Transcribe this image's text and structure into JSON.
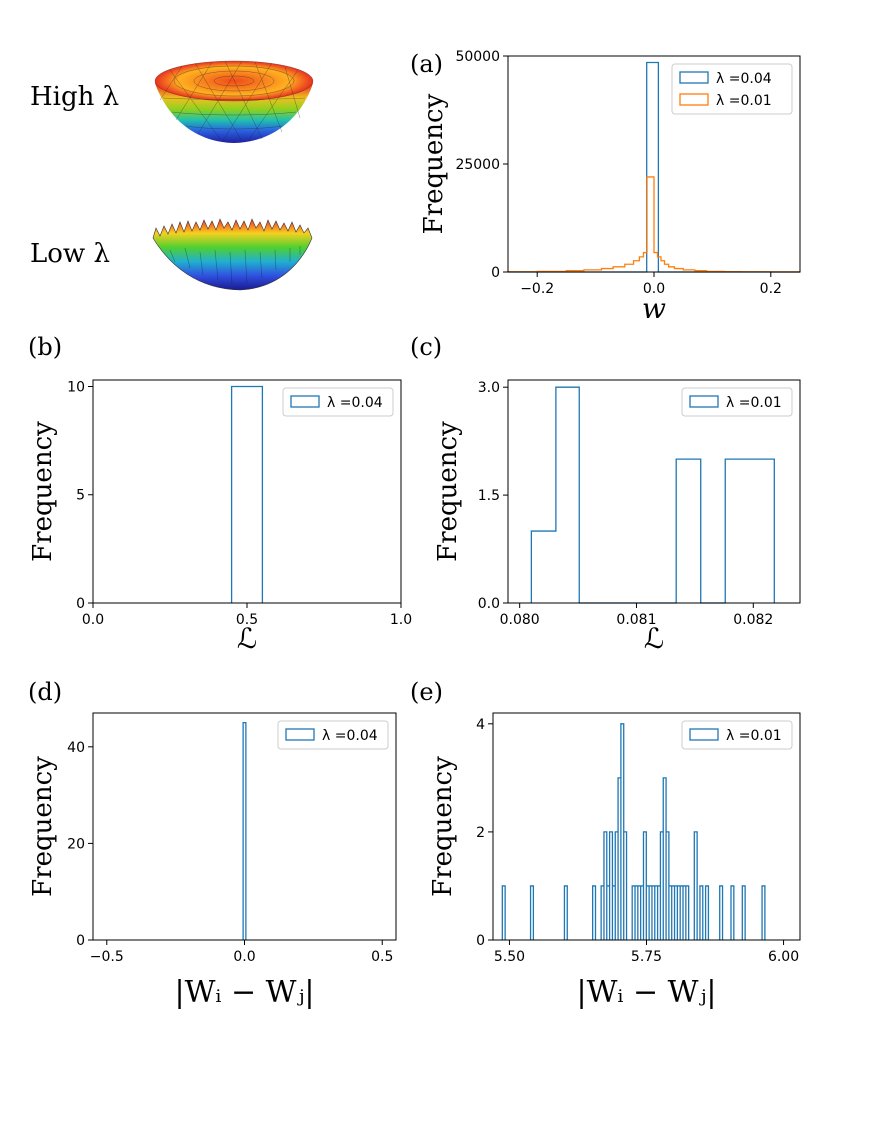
{
  "colors": {
    "blue": "#1f77b4",
    "orange": "#ff7f0e",
    "axis": "#000000",
    "background": "#ffffff"
  },
  "landscape": {
    "high_label": "High λ",
    "low_label": "Low λ"
  },
  "chart_data": [
    {
      "id": "a",
      "type": "histogram",
      "panel_label": "(a)",
      "xlabel": "w",
      "ylabel": "Frequency",
      "xlim": [
        -0.25,
        0.25
      ],
      "ylim": [
        0,
        50000
      ],
      "xticks": [
        -0.2,
        0.0,
        0.2
      ],
      "xtick_labels": [
        "−0.2",
        "0.0",
        "0.2"
      ],
      "yticks": [
        0,
        25000,
        50000
      ],
      "ytick_labels": [
        "0",
        "25000",
        "50000"
      ],
      "legend": "top-right",
      "series": [
        {
          "name": "λ =0.04",
          "color": "blue",
          "edges": [
            -0.25,
            -0.0125,
            -0.0025,
            0.0075,
            0.25
          ],
          "counts": [
            0,
            48500,
            48500,
            0
          ]
        },
        {
          "name": "λ =0.01",
          "color": "orange",
          "edges": [
            -0.25,
            -0.2,
            -0.15,
            -0.12,
            -0.09,
            -0.07,
            -0.05,
            -0.035,
            -0.025,
            -0.018,
            -0.012,
            -0.006,
            0.0,
            0.006,
            0.012,
            0.018,
            0.025,
            0.035,
            0.05,
            0.07,
            0.09,
            0.12,
            0.15,
            0.2,
            0.25
          ],
          "counts": [
            50,
            150,
            300,
            500,
            800,
            1200,
            1800,
            2600,
            3500,
            4500,
            22000,
            22000,
            4500,
            3500,
            2600,
            1800,
            1200,
            800,
            500,
            300,
            150,
            80,
            40,
            20
          ]
        }
      ]
    },
    {
      "id": "b",
      "type": "histogram",
      "panel_label": "(b)",
      "xlabel": "ℒ",
      "ylabel": "Frequency",
      "xlim": [
        0.0,
        1.0
      ],
      "ylim": [
        0,
        10.3
      ],
      "xticks": [
        0.0,
        0.5,
        1.0
      ],
      "xtick_labels": [
        "0.0",
        "0.5",
        "1.0"
      ],
      "yticks": [
        0,
        5,
        10
      ],
      "ytick_labels": [
        "0",
        "5",
        "10"
      ],
      "legend": "top-right",
      "series": [
        {
          "name": "λ =0.04",
          "color": "blue",
          "edges": [
            0.45,
            0.55
          ],
          "counts": [
            10
          ]
        }
      ]
    },
    {
      "id": "c",
      "type": "histogram",
      "panel_label": "(c)",
      "xlabel": "ℒ",
      "ylabel": "Frequency",
      "xlim": [
        0.0799,
        0.0824
      ],
      "ylim": [
        0,
        3.1
      ],
      "xticks": [
        0.08,
        0.081,
        0.082
      ],
      "xtick_labels": [
        "0.080",
        "0.081",
        "0.082"
      ],
      "yticks": [
        0,
        1.5,
        3.0
      ],
      "ytick_labels": [
        "0.0",
        "1.5",
        "3.0"
      ],
      "legend": "top-right",
      "series": [
        {
          "name": "λ =0.01",
          "color": "blue",
          "edges": [
            0.0801,
            0.08031,
            0.08051,
            0.08072,
            0.08093,
            0.08113,
            0.08134,
            0.08155,
            0.08176,
            0.08197,
            0.08218
          ],
          "counts": [
            1,
            3,
            0,
            0,
            0,
            0,
            2,
            0,
            2,
            2
          ]
        }
      ]
    },
    {
      "id": "d",
      "type": "histogram",
      "panel_label": "(d)",
      "xlabel": "|Wᵢ − Wⱼ|",
      "ylabel": "Frequency",
      "xlim": [
        -0.55,
        0.55
      ],
      "ylim": [
        0,
        47
      ],
      "xticks": [
        -0.5,
        0.0,
        0.5
      ],
      "xtick_labels": [
        "−0.5",
        "0.0",
        "0.5"
      ],
      "yticks": [
        0,
        20,
        40
      ],
      "ytick_labels": [
        "0",
        "20",
        "40"
      ],
      "legend": "top-right",
      "series": [
        {
          "name": "λ =0.04",
          "color": "blue",
          "edges": [
            -0.005,
            0.005
          ],
          "counts": [
            45
          ]
        }
      ]
    },
    {
      "id": "e",
      "type": "histogram",
      "panel_label": "(e)",
      "xlabel": "|Wᵢ − Wⱼ|",
      "ylabel": "Frequency",
      "xlim": [
        5.47,
        6.03
      ],
      "ylim": [
        0,
        4.2
      ],
      "xticks": [
        5.5,
        5.75,
        6.0
      ],
      "xtick_labels": [
        "5.50",
        "5.75",
        "6.00"
      ],
      "yticks": [
        0,
        2,
        4
      ],
      "ytick_labels": [
        "0",
        "2",
        "4"
      ],
      "legend": "top-right",
      "series": [
        {
          "name": "λ =0.01",
          "color": "blue",
          "bin_start": 5.487,
          "bin_width": 0.00515,
          "bins": [
            [
              0,
              1
            ],
            [
              10,
              1
            ],
            [
              22,
              1
            ],
            [
              32,
              1
            ],
            [
              35,
              1
            ],
            [
              36,
              2
            ],
            [
              37,
              1
            ],
            [
              38,
              2
            ],
            [
              39,
              1
            ],
            [
              40,
              2
            ],
            [
              41,
              3
            ],
            [
              42,
              4
            ],
            [
              43,
              2
            ],
            [
              46,
              1
            ],
            [
              47,
              1
            ],
            [
              48,
              1
            ],
            [
              49,
              1
            ],
            [
              50,
              2
            ],
            [
              51,
              1
            ],
            [
              52,
              1
            ],
            [
              53,
              1
            ],
            [
              54,
              1
            ],
            [
              55,
              1
            ],
            [
              56,
              2
            ],
            [
              57,
              3
            ],
            [
              58,
              2
            ],
            [
              59,
              1
            ],
            [
              60,
              1
            ],
            [
              61,
              1
            ],
            [
              62,
              1
            ],
            [
              63,
              1
            ],
            [
              64,
              1
            ],
            [
              65,
              1
            ],
            [
              68,
              2
            ],
            [
              70,
              1
            ],
            [
              72,
              1
            ],
            [
              77,
              1
            ],
            [
              81,
              1
            ],
            [
              85,
              1
            ],
            [
              92,
              1
            ]
          ]
        }
      ]
    }
  ]
}
